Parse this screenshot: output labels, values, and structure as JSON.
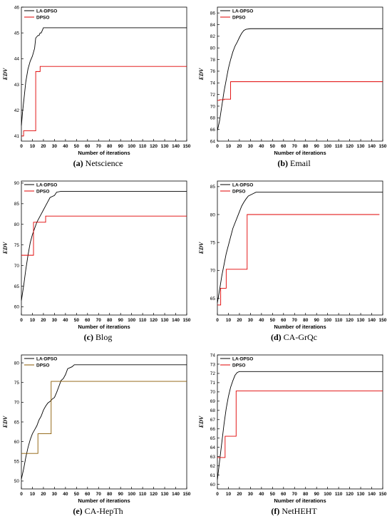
{
  "colors": {
    "la_dpso": "#000000",
    "dpso": "#e00000",
    "dpso_bottom": "#8a5a00"
  },
  "chart_data": [
    {
      "type": "line",
      "panel_label": "(a)",
      "caption": "Netscience",
      "xlabel": "Number of iterations",
      "ylabel": "EDV",
      "xlim": [
        0,
        150
      ],
      "ylim": [
        40.8,
        46
      ],
      "xticks": [
        0,
        10,
        20,
        30,
        40,
        50,
        60,
        70,
        80,
        90,
        100,
        110,
        120,
        130,
        140,
        150
      ],
      "yticks": [
        41,
        42,
        43,
        44,
        45,
        46
      ],
      "legend_position": "top-left",
      "series": [
        {
          "name": "LA-DPSO",
          "step": false,
          "points": [
            [
              0,
              41.4
            ],
            [
              1,
              41.9
            ],
            [
              2,
              42.3
            ],
            [
              3,
              42.7
            ],
            [
              4,
              43.1
            ],
            [
              6,
              43.6
            ],
            [
              8,
              43.9
            ],
            [
              10,
              44.1
            ],
            [
              12,
              44.4
            ],
            [
              13,
              44.8
            ],
            [
              15,
              44.9
            ],
            [
              16,
              44.9
            ],
            [
              17,
              45.0
            ],
            [
              18,
              45.0
            ],
            [
              19,
              45.1
            ],
            [
              20,
              45.2
            ],
            [
              150,
              45.2
            ]
          ]
        },
        {
          "name": "DPSO",
          "step": true,
          "points": [
            [
              0,
              41.0
            ],
            [
              2,
              41.2
            ],
            [
              13,
              43.5
            ],
            [
              17,
              43.7
            ],
            [
              150,
              43.7
            ]
          ]
        }
      ]
    },
    {
      "type": "line",
      "panel_label": "(b)",
      "caption": "Email",
      "xlabel": "Number of iterations",
      "ylabel": "EDV",
      "xlim": [
        0,
        150
      ],
      "ylim": [
        64,
        87
      ],
      "xticks": [
        0,
        10,
        20,
        30,
        40,
        50,
        60,
        70,
        80,
        90,
        100,
        110,
        120,
        130,
        140,
        150
      ],
      "yticks": [
        64,
        66,
        68,
        70,
        72,
        74,
        76,
        78,
        80,
        82,
        84,
        86
      ],
      "legend_position": "top-left",
      "series": [
        {
          "name": "LA-DPSO",
          "step": false,
          "points": [
            [
              0,
              65.8
            ],
            [
              2,
              67.5
            ],
            [
              4,
              70.0
            ],
            [
              6,
              72.5
            ],
            [
              8,
              74.5
            ],
            [
              10,
              76.5
            ],
            [
              12,
              78.0
            ],
            [
              14,
              79.3
            ],
            [
              16,
              80.3
            ],
            [
              18,
              81.0
            ],
            [
              20,
              81.8
            ],
            [
              22,
              82.5
            ],
            [
              24,
              83.0
            ],
            [
              26,
              83.2
            ],
            [
              30,
              83.3
            ],
            [
              150,
              83.3
            ]
          ]
        },
        {
          "name": "DPSO",
          "step": true,
          "points": [
            [
              0,
              71.0
            ],
            [
              2,
              71.1
            ],
            [
              6,
              71.2
            ],
            [
              12,
              74.2
            ],
            [
              150,
              74.2
            ]
          ]
        }
      ]
    },
    {
      "type": "line",
      "panel_label": "(c)",
      "caption": "Blog",
      "xlabel": "Number of iterations",
      "ylabel": "EDV",
      "xlim": [
        0,
        150
      ],
      "ylim": [
        58,
        90.5
      ],
      "xticks": [
        0,
        10,
        20,
        30,
        40,
        50,
        60,
        70,
        80,
        90,
        100,
        110,
        120,
        130,
        140,
        150
      ],
      "yticks": [
        60,
        65,
        70,
        75,
        80,
        85,
        90
      ],
      "legend_position": "top-left",
      "series": [
        {
          "name": "LA-DPSO",
          "step": false,
          "points": [
            [
              0,
              61.5
            ],
            [
              2,
              65.0
            ],
            [
              4,
              69.0
            ],
            [
              6,
              72.5
            ],
            [
              8,
              75.5
            ],
            [
              10,
              77.5
            ],
            [
              12,
              79.0
            ],
            [
              14,
              80.5
            ],
            [
              16,
              81.5
            ],
            [
              18,
              82.5
            ],
            [
              20,
              83.5
            ],
            [
              22,
              84.5
            ],
            [
              24,
              85.5
            ],
            [
              26,
              86.5
            ],
            [
              30,
              87.0
            ],
            [
              32,
              87.8
            ],
            [
              36,
              88.0
            ],
            [
              150,
              88.0
            ]
          ]
        },
        {
          "name": "DPSO",
          "step": true,
          "points": [
            [
              0,
              72.5
            ],
            [
              11,
              80.5
            ],
            [
              22,
              82.0
            ],
            [
              150,
              82.0
            ]
          ]
        }
      ]
    },
    {
      "type": "line",
      "panel_label": "(d)",
      "caption": "CA-GrQc",
      "xlabel": "Number of iterations",
      "ylabel": "EDV",
      "xlim": [
        0,
        150
      ],
      "ylim": [
        62,
        86
      ],
      "xticks": [
        0,
        10,
        20,
        30,
        40,
        50,
        60,
        70,
        80,
        90,
        100,
        110,
        120,
        130,
        140,
        150
      ],
      "yticks": [
        65,
        70,
        75,
        80,
        85
      ],
      "legend_position": "top-left",
      "series": [
        {
          "name": "LA-DPSO",
          "step": false,
          "points": [
            [
              0,
              64.2
            ],
            [
              2,
              66.5
            ],
            [
              4,
              69.0
            ],
            [
              6,
              71.0
            ],
            [
              8,
              73.0
            ],
            [
              10,
              74.5
            ],
            [
              12,
              76.0
            ],
            [
              14,
              77.5
            ],
            [
              16,
              78.5
            ],
            [
              18,
              79.5
            ],
            [
              20,
              80.5
            ],
            [
              22,
              81.5
            ],
            [
              24,
              82.2
            ],
            [
              26,
              82.8
            ],
            [
              28,
              83.3
            ],
            [
              32,
              83.7
            ],
            [
              35,
              84.0
            ],
            [
              150,
              84.0
            ]
          ]
        },
        {
          "name": "DPSO",
          "step": true,
          "points": [
            [
              0,
              63.8
            ],
            [
              3,
              66.8
            ],
            [
              8,
              70.2
            ],
            [
              27,
              80.0
            ],
            [
              147,
              80.0
            ]
          ]
        }
      ]
    },
    {
      "type": "line",
      "panel_label": "(e)",
      "caption": "CA-HepTh",
      "xlabel": "Number of iterations",
      "ylabel": "EDV",
      "xlim": [
        0,
        150
      ],
      "ylim": [
        48,
        82
      ],
      "xticks": [
        0,
        10,
        20,
        30,
        40,
        50,
        60,
        70,
        80,
        90,
        100,
        110,
        120,
        130,
        140,
        150
      ],
      "yticks": [
        50,
        55,
        60,
        65,
        70,
        75,
        80
      ],
      "legend_position": "top-left",
      "series": [
        {
          "name": "LA-DPSO",
          "step": false,
          "points": [
            [
              0,
              50.5
            ],
            [
              2,
              53.0
            ],
            [
              4,
              56.0
            ],
            [
              6,
              58.5
            ],
            [
              8,
              60.5
            ],
            [
              10,
              62.0
            ],
            [
              12,
              63.0
            ],
            [
              14,
              64.0
            ],
            [
              16,
              65.5
            ],
            [
              18,
              66.5
            ],
            [
              20,
              68.0
            ],
            [
              22,
              69.0
            ],
            [
              24,
              69.8
            ],
            [
              26,
              70.2
            ],
            [
              28,
              70.8
            ],
            [
              30,
              71.2
            ],
            [
              32,
              72.5
            ],
            [
              34,
              74.0
            ],
            [
              36,
              75.5
            ],
            [
              38,
              76.0
            ],
            [
              40,
              77.0
            ],
            [
              42,
              78.5
            ],
            [
              46,
              79.0
            ],
            [
              48,
              79.5
            ],
            [
              150,
              79.5
            ]
          ]
        },
        {
          "name": "DPSO",
          "step": true,
          "points": [
            [
              0,
              57.0
            ],
            [
              15,
              62.0
            ],
            [
              27,
              75.3
            ],
            [
              150,
              75.3
            ]
          ]
        }
      ]
    },
    {
      "type": "line",
      "panel_label": "(f)",
      "caption": "NetHEHT",
      "xlabel": "Number of iterations",
      "ylabel": "EDV",
      "xlim": [
        0,
        150
      ],
      "ylim": [
        59.5,
        74
      ],
      "xticks": [
        0,
        10,
        20,
        30,
        40,
        50,
        60,
        70,
        80,
        90,
        100,
        110,
        120,
        130,
        140,
        150
      ],
      "yticks": [
        60,
        61,
        62,
        63,
        64,
        65,
        66,
        67,
        68,
        69,
        70,
        71,
        72,
        73,
        74
      ],
      "legend_position": "top-left",
      "series": [
        {
          "name": "LA-DPSO",
          "step": false,
          "points": [
            [
              0,
              60.5
            ],
            [
              2,
              62.5
            ],
            [
              4,
              64.5
            ],
            [
              6,
              66.5
            ],
            [
              8,
              68.2
            ],
            [
              10,
              69.5
            ],
            [
              12,
              70.5
            ],
            [
              14,
              71.2
            ],
            [
              16,
              71.8
            ],
            [
              18,
              72.1
            ],
            [
              20,
              72.2
            ],
            [
              150,
              72.2
            ]
          ]
        },
        {
          "name": "DPSO",
          "step": true,
          "points": [
            [
              0,
              62.9
            ],
            [
              7,
              65.2
            ],
            [
              17,
              70.1
            ],
            [
              150,
              70.1
            ]
          ]
        }
      ]
    }
  ]
}
